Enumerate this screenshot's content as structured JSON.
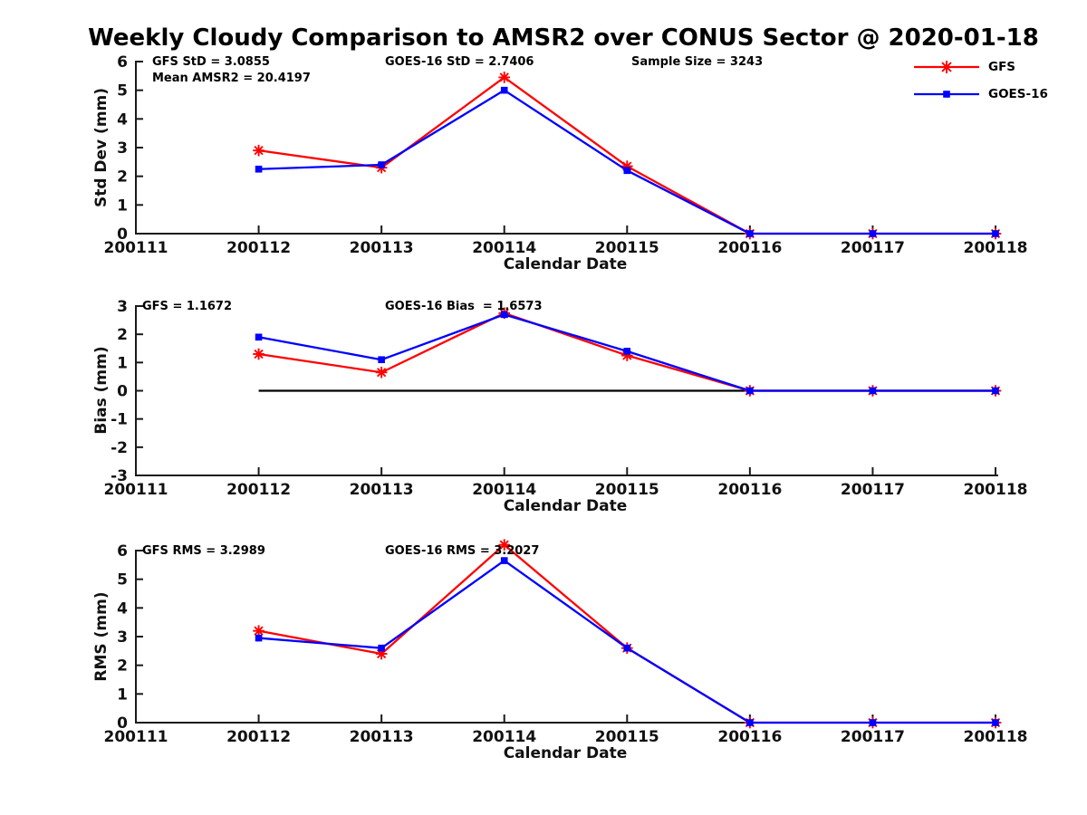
{
  "page": {
    "title": "Weekly Cloudy Comparison to AMSR2 over CONUS Sector @ 2020-01-18"
  },
  "legend": {
    "position": "top-right",
    "items": [
      {
        "label": "GFS",
        "color": "#ff0000",
        "marker": "asterisk"
      },
      {
        "label": "GOES-16",
        "color": "#0000ff",
        "marker": "square"
      }
    ]
  },
  "axes": {
    "xlabel": "Calendar Date",
    "x_ticklabels": [
      "200111",
      "200112",
      "200113",
      "200114",
      "200115",
      "200116",
      "200117",
      "200118"
    ]
  },
  "chart_data": [
    {
      "type": "line",
      "name": "std-dev",
      "ylabel": "Std Dev (mm)",
      "ylim": [
        0,
        6
      ],
      "yticks": [
        0,
        1,
        2,
        3,
        4,
        5,
        6
      ],
      "grid": false,
      "categories": [
        "200111",
        "200112",
        "200113",
        "200114",
        "200115",
        "200116",
        "200117",
        "200118"
      ],
      "data_x": [
        "200112",
        "200113",
        "200114",
        "200115",
        "200116",
        "200117",
        "200118"
      ],
      "annotations": {
        "left1": "GFS StD = 3.0855",
        "left2": "Mean AMSR2 = 20.4197",
        "mid": "GOES-16 StD = 2.7406",
        "right": "Sample Size = 3243"
      },
      "series": [
        {
          "name": "GFS",
          "color": "#ff0000",
          "marker": "asterisk",
          "values": [
            2.9,
            2.3,
            5.45,
            2.35,
            0,
            0,
            0
          ]
        },
        {
          "name": "GOES-16",
          "color": "#0000ff",
          "marker": "square",
          "values": [
            2.25,
            2.4,
            5.0,
            2.2,
            0,
            0,
            0
          ]
        }
      ]
    },
    {
      "type": "line",
      "name": "bias",
      "ylabel": "Bias (mm)",
      "ylim": [
        -3,
        3
      ],
      "yticks": [
        -3,
        -2,
        -1,
        0,
        1,
        2,
        3
      ],
      "grid": false,
      "zero_line": true,
      "categories": [
        "200111",
        "200112",
        "200113",
        "200114",
        "200115",
        "200116",
        "200117",
        "200118"
      ],
      "data_x": [
        "200112",
        "200113",
        "200114",
        "200115",
        "200116",
        "200117",
        "200118"
      ],
      "annotations": {
        "left1": "GFS = 1.1672",
        "mid": "GOES-16 Bias  = 1.6573"
      },
      "series": [
        {
          "name": "GFS",
          "color": "#ff0000",
          "marker": "asterisk",
          "values": [
            1.3,
            0.65,
            2.75,
            1.25,
            0,
            0,
            0
          ]
        },
        {
          "name": "GOES-16",
          "color": "#0000ff",
          "marker": "square",
          "values": [
            1.9,
            1.1,
            2.7,
            1.4,
            0,
            0,
            0
          ]
        }
      ]
    },
    {
      "type": "line",
      "name": "rms",
      "ylabel": "RMS (mm)",
      "ylim": [
        0,
        6
      ],
      "yticks": [
        0,
        1,
        2,
        3,
        4,
        5,
        6
      ],
      "grid": false,
      "categories": [
        "200111",
        "200112",
        "200113",
        "200114",
        "200115",
        "200116",
        "200117",
        "200118"
      ],
      "data_x": [
        "200112",
        "200113",
        "200114",
        "200115",
        "200116",
        "200117",
        "200118"
      ],
      "annotations": {
        "left1": "GFS RMS = 3.2989",
        "mid": "GOES-16 RMS = 3.2027"
      },
      "series": [
        {
          "name": "GFS",
          "color": "#ff0000",
          "marker": "asterisk",
          "values": [
            3.2,
            2.4,
            6.2,
            2.6,
            0,
            0,
            0
          ]
        },
        {
          "name": "GOES-16",
          "color": "#0000ff",
          "marker": "square",
          "values": [
            2.95,
            2.6,
            5.65,
            2.6,
            0,
            0,
            0
          ]
        }
      ]
    }
  ]
}
